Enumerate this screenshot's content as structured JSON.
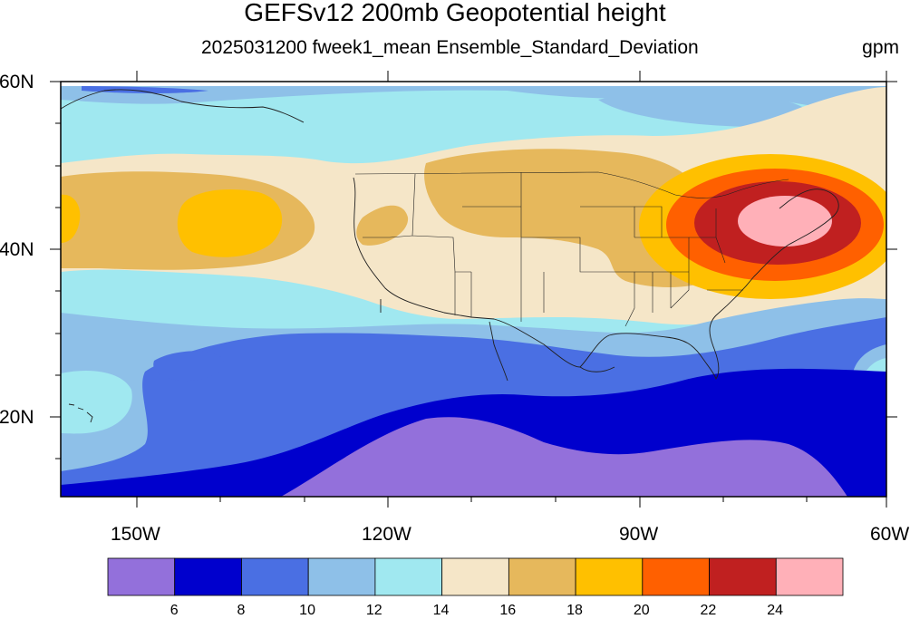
{
  "header": {
    "title": "GEFSv12 200mb Geopotential height",
    "subtitle": "2025031200 fweek1_mean Ensemble_Standard_Deviation",
    "units": "gpm"
  },
  "axes": {
    "lat_labels": [
      "60N",
      "40N",
      "20N"
    ],
    "lon_labels": [
      "150W",
      "120W",
      "90W",
      "60W"
    ]
  },
  "colorbar": {
    "colors": [
      "#9370DB",
      "#0000CD",
      "#4A6FE3",
      "#8EC0E8",
      "#A0E8F0",
      "#F5E6C8",
      "#E6B85C",
      "#FFC000",
      "#FF6000",
      "#C02020",
      "#FFB0B8"
    ],
    "labels": [
      "6",
      "8",
      "10",
      "12",
      "14",
      "16",
      "18",
      "20",
      "22",
      "24"
    ]
  },
  "chart_data": {
    "type": "heatmap",
    "title": "GEFSv12 200mb Geopotential height",
    "subtitle": "2025031200 fweek1_mean Ensemble_Standard_Deviation",
    "units": "gpm",
    "lon_range": [
      -160,
      -60
    ],
    "lat_range": [
      10,
      60
    ],
    "contour_levels": [
      6,
      8,
      10,
      12,
      14,
      16,
      18,
      20,
      22,
      24
    ],
    "features": {
      "max_center": "24+",
      "min_region": "<6"
    }
  }
}
